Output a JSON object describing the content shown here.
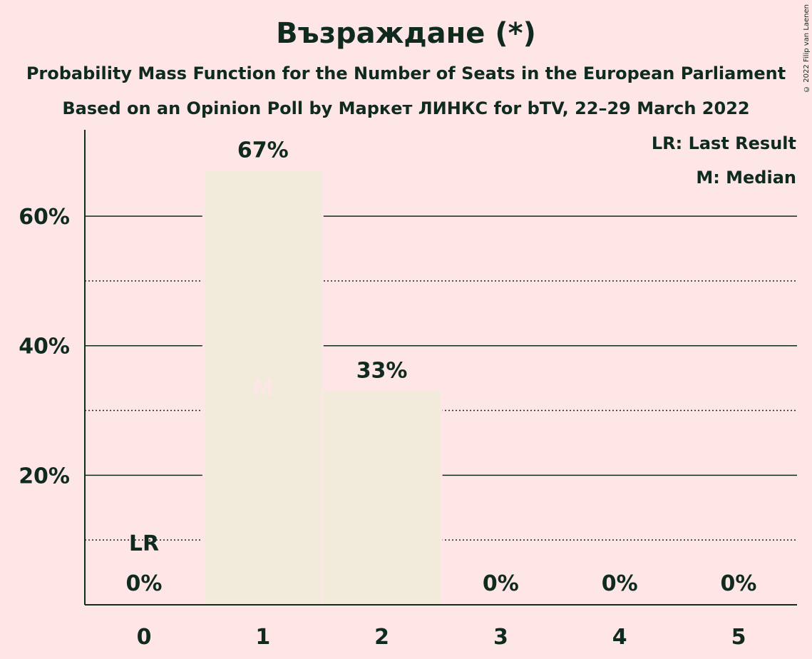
{
  "header": {
    "title": "Възраждане (*)",
    "subtitle1": "Probability Mass Function for the Number of Seats in the European Parliament",
    "subtitle2": "Based on an Opinion Poll by Маркет ЛИНКС for bTV, 22–29 March 2022",
    "copyright": "© 2022 Filip van Laenen"
  },
  "legend": {
    "last_result": "LR: Last Result",
    "median": "M: Median"
  },
  "colors": {
    "background": "#FFE6E6",
    "bar": "#F2EADB",
    "text": "#0F2A1F",
    "median_marker": "#FFE6E6"
  },
  "chart_data": {
    "type": "bar",
    "categories": [
      "0",
      "1",
      "2",
      "3",
      "4",
      "5"
    ],
    "values": [
      0,
      67,
      33,
      0,
      0,
      0
    ],
    "value_labels": [
      "0%",
      "67%",
      "33%",
      "0%",
      "0%",
      "0%"
    ],
    "yticks": [
      20,
      40,
      60
    ],
    "ytick_labels": [
      "20%",
      "40%",
      "60%"
    ],
    "minor_gridlines": [
      10,
      30,
      50
    ],
    "ylim": [
      0,
      73
    ],
    "last_result": {
      "category": "0",
      "label": "LR"
    },
    "median": {
      "category": "1",
      "label": "M"
    },
    "legend_position": "top-right"
  }
}
